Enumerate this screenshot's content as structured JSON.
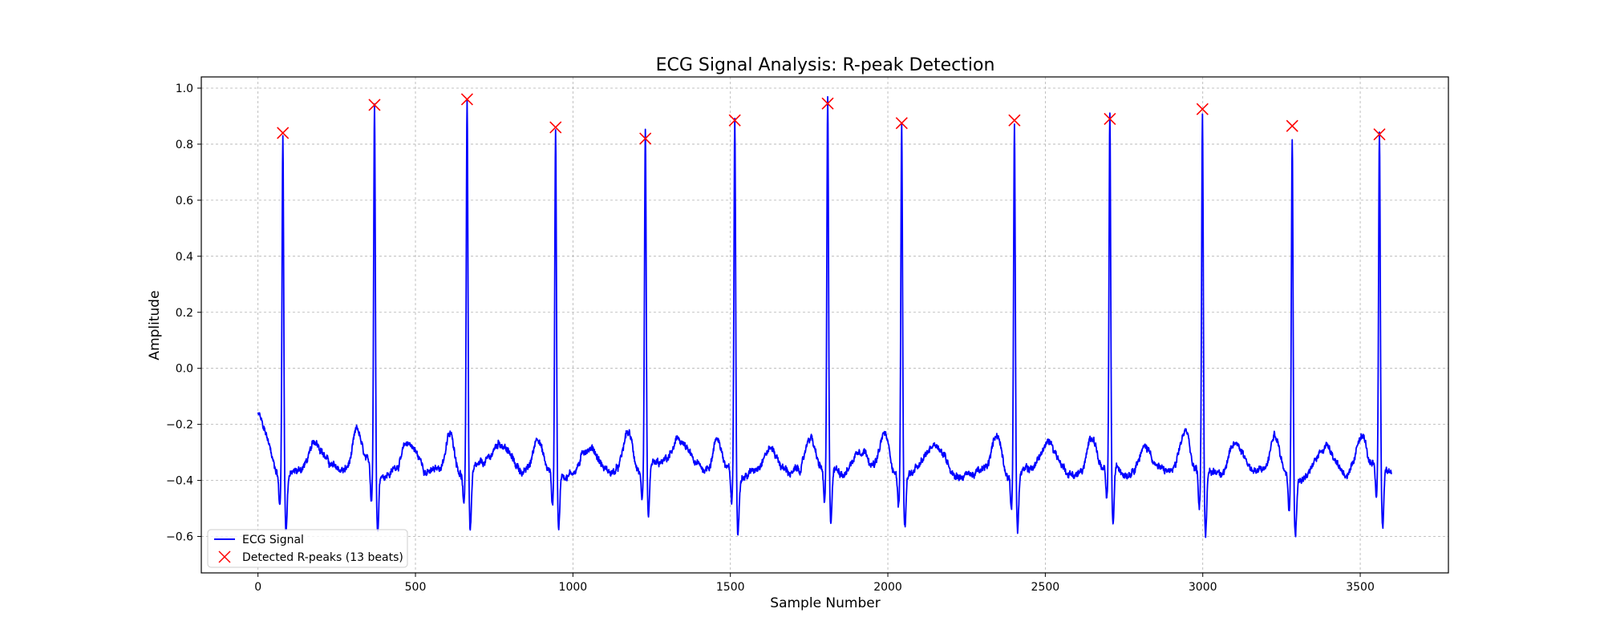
{
  "chart_data": {
    "type": "line",
    "title": "ECG Signal Analysis: R-peak Detection",
    "xlabel": "Sample Number",
    "ylabel": "Amplitude",
    "xlim": [
      -180,
      3780
    ],
    "ylim": [
      -0.73,
      1.04
    ],
    "xticks": [
      0,
      500,
      1000,
      1500,
      2000,
      2500,
      3000,
      3500
    ],
    "yticks": [
      -0.6,
      -0.4,
      -0.2,
      0.0,
      0.2,
      0.4,
      0.6,
      0.8,
      1.0
    ],
    "xtick_labels": [
      "0",
      "500",
      "1000",
      "1500",
      "2000",
      "2500",
      "3000",
      "3500"
    ],
    "ytick_labels": [
      "−0.6",
      "−0.4",
      "−0.2",
      "0.0",
      "0.2",
      "0.4",
      "0.6",
      "0.8",
      "1.0"
    ],
    "grid": true,
    "legend_position": "lower-left",
    "series": [
      {
        "name": "ECG Signal",
        "kind": "line",
        "color": "#0000ff",
        "n_samples": 3600,
        "baseline": -0.37
      },
      {
        "name": "Detected R-peaks (13 beats)",
        "kind": "scatter",
        "marker": "x",
        "color": "#ff0000",
        "x": [
          79,
          370,
          664,
          945,
          1230,
          1514,
          1809,
          2044,
          2402,
          2705,
          2999,
          3284,
          3561
        ],
        "y": [
          0.84,
          0.94,
          0.96,
          0.86,
          0.82,
          0.885,
          0.945,
          0.875,
          0.885,
          0.89,
          0.925,
          0.865,
          0.835
        ]
      }
    ]
  }
}
